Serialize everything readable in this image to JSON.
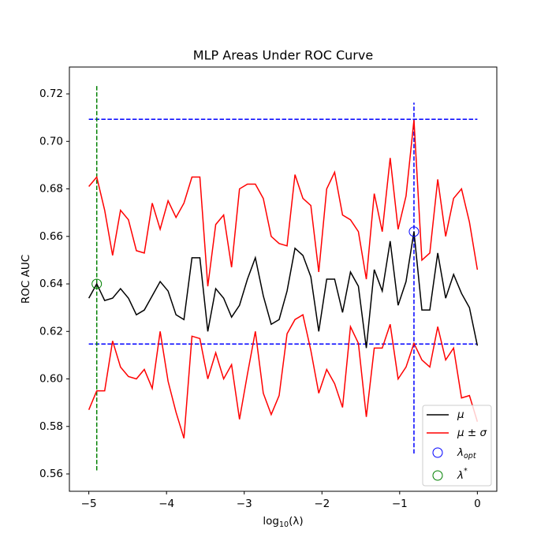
{
  "chart_data": {
    "type": "line",
    "title": "MLP Areas Under ROC Curve",
    "x_label": {
      "base": "log",
      "subscript": "10",
      "rest": "(λ)"
    },
    "y_label": "ROC AUC",
    "x": [
      -5,
      -4.898,
      -4.796,
      -4.694,
      -4.592,
      -4.49,
      -4.388,
      -4.286,
      -4.184,
      -4.082,
      -3.98,
      -3.878,
      -3.776,
      -3.673,
      -3.571,
      -3.469,
      -3.367,
      -3.265,
      -3.163,
      -3.061,
      -2.959,
      -2.857,
      -2.755,
      -2.653,
      -2.551,
      -2.449,
      -2.347,
      -2.245,
      -2.143,
      -2.041,
      -1.939,
      -1.837,
      -1.735,
      -1.633,
      -1.531,
      -1.429,
      -1.327,
      -1.224,
      -1.122,
      -1.02,
      -0.918,
      -0.816,
      -0.714,
      -0.612,
      -0.51,
      -0.408,
      -0.306,
      -0.204,
      -0.102,
      0
    ],
    "series": [
      {
        "name": "μ",
        "color": "#000000",
        "values": [
          0.634,
          0.64,
          0.633,
          0.634,
          0.638,
          0.634,
          0.627,
          0.629,
          0.635,
          0.641,
          0.637,
          0.627,
          0.625,
          0.651,
          0.651,
          0.62,
          0.638,
          0.634,
          0.626,
          0.631,
          0.642,
          0.651,
          0.635,
          0.623,
          0.625,
          0.637,
          0.655,
          0.652,
          0.643,
          0.62,
          0.642,
          0.642,
          0.628,
          0.645,
          0.639,
          0.613,
          0.646,
          0.637,
          0.658,
          0.631,
          0.641,
          0.662,
          0.629,
          0.629,
          0.653,
          0.634,
          0.644,
          0.636,
          0.63,
          0.614
        ]
      },
      {
        "name": "μ ± σ",
        "color": "#ff0000",
        "values": [
          0.681,
          0.685,
          0.671,
          0.652,
          0.671,
          0.667,
          0.654,
          0.653,
          0.674,
          0.663,
          0.675,
          0.668,
          0.674,
          0.685,
          0.685,
          0.639,
          0.665,
          0.669,
          0.647,
          0.68,
          0.682,
          0.682,
          0.676,
          0.66,
          0.657,
          0.656,
          0.686,
          0.676,
          0.673,
          0.645,
          0.68,
          0.687,
          0.669,
          0.667,
          0.662,
          0.642,
          0.678,
          0.662,
          0.693,
          0.663,
          0.677,
          0.709,
          0.65,
          0.653,
          0.684,
          0.66,
          0.676,
          0.68,
          0.666,
          0.646
        ],
        "values_lower": [
          0.587,
          0.595,
          0.595,
          0.616,
          0.605,
          0.601,
          0.6,
          0.604,
          0.596,
          0.62,
          0.599,
          0.586,
          0.575,
          0.618,
          0.617,
          0.6,
          0.611,
          0.6,
          0.606,
          0.583,
          0.602,
          0.62,
          0.594,
          0.585,
          0.593,
          0.619,
          0.625,
          0.627,
          0.612,
          0.594,
          0.604,
          0.598,
          0.588,
          0.622,
          0.615,
          0.584,
          0.613,
          0.613,
          0.623,
          0.6,
          0.605,
          0.615,
          0.608,
          0.605,
          0.622,
          0.608,
          0.613,
          0.592,
          0.593,
          0.582
        ]
      }
    ],
    "points": [
      {
        "name": "λ",
        "subscript": "opt",
        "color": "#0000ff",
        "x": -0.816,
        "y": 0.662
      },
      {
        "name": "λ",
        "superscript": "*",
        "color": "#008000",
        "x": -4.898,
        "y": 0.64
      }
    ],
    "hlines": [
      {
        "y": 0.7093,
        "xmin": -5,
        "xmax": 0,
        "color": "#0000ff"
      },
      {
        "y": 0.6147,
        "xmin": -5,
        "xmax": 0,
        "color": "#0000ff"
      }
    ],
    "vlines": [
      {
        "x": -0.816,
        "ymin": 0.5686,
        "ymax": 0.7163,
        "color": "#0000ff"
      },
      {
        "x": -4.898,
        "ymin": 0.5615,
        "ymax": 0.7233,
        "color": "#008000"
      }
    ],
    "xlim": [
      -5.25,
      0.25
    ],
    "ylim": [
      0.5527,
      0.7313
    ],
    "xticks": [
      {
        "value": -5,
        "label": "−5"
      },
      {
        "value": -4,
        "label": "−4"
      },
      {
        "value": -3,
        "label": "−3"
      },
      {
        "value": -2,
        "label": "−2"
      },
      {
        "value": -1,
        "label": "−1"
      },
      0
    ],
    "yticks": [
      {
        "value": 0.56,
        "label": "0.56"
      },
      {
        "value": 0.58,
        "label": "0.58"
      },
      {
        "value": 0.6,
        "label": "0.60"
      },
      {
        "value": 0.62,
        "label": "0.62"
      },
      {
        "value": 0.64,
        "label": "0.64"
      },
      {
        "value": 0.66,
        "label": "0.66"
      },
      {
        "value": 0.68,
        "label": "0.68"
      },
      {
        "value": 0.7,
        "label": "0.70"
      },
      {
        "value": 0.72,
        "label": "0.72"
      }
    ],
    "legend": "lower right"
  }
}
